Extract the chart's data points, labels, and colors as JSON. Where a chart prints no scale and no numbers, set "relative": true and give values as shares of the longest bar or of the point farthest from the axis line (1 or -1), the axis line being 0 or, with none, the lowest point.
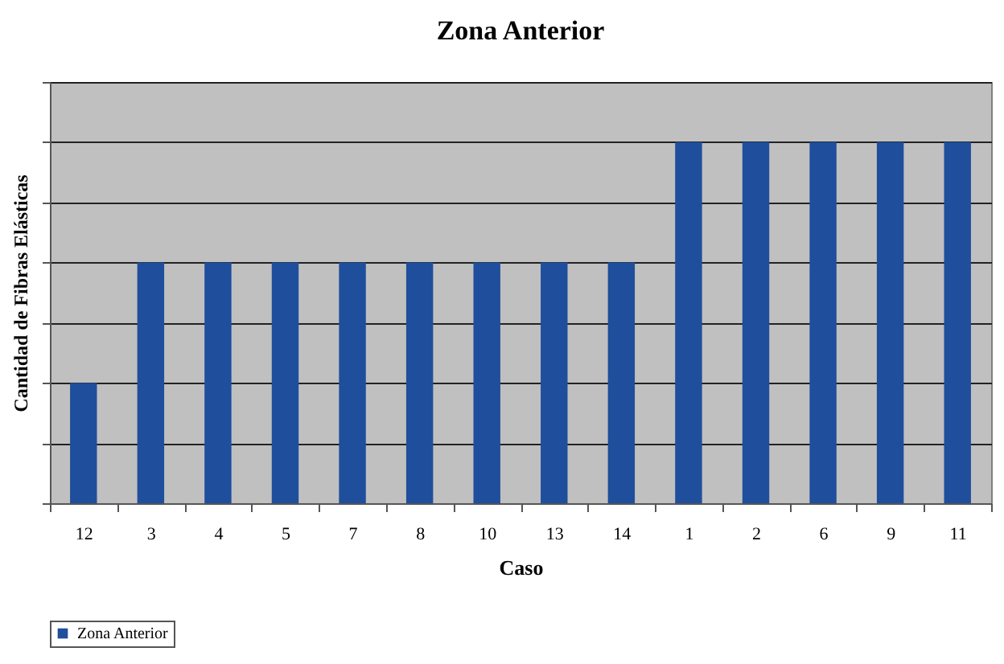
{
  "chart_data": {
    "type": "bar",
    "title": "Zona Anterior",
    "xlabel": "Caso",
    "ylabel": "Cantidad de Fibras Elásticas",
    "categories": [
      "12",
      "3",
      "4",
      "5",
      "7",
      "8",
      "10",
      "13",
      "14",
      "1",
      "2",
      "6",
      "9",
      "11"
    ],
    "relative": true,
    "grid": true,
    "legend": "bottom",
    "series": [
      {
        "name": "Zona Anterior",
        "color": "#1f4e9c",
        "values": [
          0.333,
          0.667,
          0.667,
          0.667,
          0.667,
          0.667,
          0.667,
          0.667,
          0.667,
          1,
          1,
          1,
          1,
          1
        ]
      }
    ]
  }
}
